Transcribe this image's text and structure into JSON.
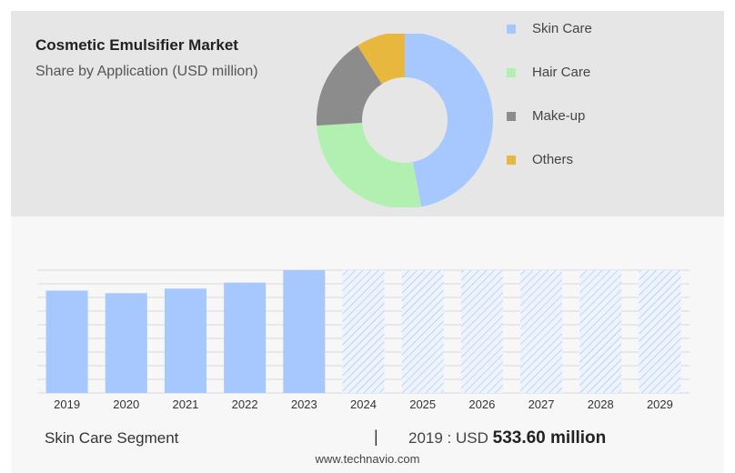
{
  "header": {
    "title": "Cosmetic Emulsifier Market",
    "subtitle": "Share by Application (USD million)"
  },
  "legend": [
    {
      "label": "Skin Care",
      "color": "#a6c8ff"
    },
    {
      "label": "Hair Care",
      "color": "#b2f0b2"
    },
    {
      "label": "Make-up",
      "color": "#8c8c8c"
    },
    {
      "label": "Others",
      "color": "#e8b73d"
    }
  ],
  "chart_data": [
    {
      "type": "pie",
      "categories": [
        "Skin Care",
        "Hair Care",
        "Make-up",
        "Others"
      ],
      "values": [
        47,
        27,
        17,
        9
      ],
      "colors": [
        "#a6c8ff",
        "#b2f0b2",
        "#8c8c8c",
        "#e8b73d"
      ],
      "donut": true
    },
    {
      "type": "bar",
      "categories": [
        "2019",
        "2020",
        "2021",
        "2022",
        "2023",
        "2024",
        "2025",
        "2026",
        "2027",
        "2028",
        "2029"
      ],
      "values": [
        533.6,
        520,
        544,
        575,
        640,
        null,
        null,
        null,
        null,
        null,
        null
      ],
      "forecast": [
        false,
        false,
        false,
        false,
        false,
        true,
        true,
        true,
        true,
        true,
        true
      ],
      "bar_color": "#a6c8ff",
      "ylim": [
        0,
        640
      ],
      "grid": true
    }
  ],
  "footer": {
    "segment": "Skin Care Segment",
    "separator": "|",
    "year_label": "2019 : USD",
    "value": "533.60 million",
    "site": "www.technavio.com"
  }
}
